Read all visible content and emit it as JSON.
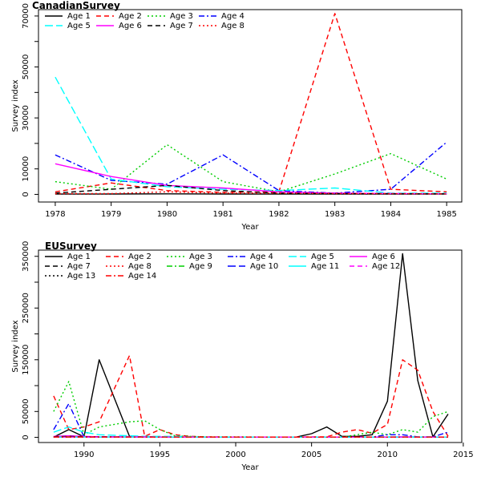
{
  "chart_data": [
    {
      "type": "line",
      "title": "CanadianSurvey",
      "xlabel": "Year",
      "ylabel": "Survey index",
      "x": [
        1978,
        1979,
        1980,
        1981,
        1982,
        1983,
        1984,
        1985
      ],
      "xlim": [
        1977.7,
        1985.27
      ],
      "ylim": [
        -3000,
        72500
      ],
      "xticks": [
        1978,
        1979,
        1980,
        1981,
        1982,
        1983,
        1984,
        1985
      ],
      "yticks": [
        0,
        10000,
        30000,
        50000,
        70000
      ],
      "minor_yticks": [
        20000,
        40000,
        60000
      ],
      "legend": "top-left",
      "legend_cols": 4,
      "series": [
        {
          "name": "Age 1",
          "color": "#000000",
          "dash": "solid",
          "values": [
            100,
            150,
            200,
            150,
            100,
            100,
            100,
            100
          ]
        },
        {
          "name": "Age 2",
          "color": "#ff0000",
          "dash": "dashed",
          "values": [
            1000,
            4500,
            1500,
            800,
            1000,
            71000,
            2000,
            1000
          ]
        },
        {
          "name": "Age 3",
          "color": "#00cd00",
          "dash": "dotted",
          "values": [
            5000,
            2000,
            19500,
            5000,
            1000,
            8000,
            16000,
            6000
          ]
        },
        {
          "name": "Age 4",
          "color": "#0000ff",
          "dash": "dashdot",
          "values": [
            15500,
            5500,
            4000,
            15500,
            1500,
            500,
            2000,
            20500
          ]
        },
        {
          "name": "Age 5",
          "color": "#00ffff",
          "dash": "longdash",
          "values": [
            46000,
            6000,
            3000,
            2000,
            1500,
            2500,
            500,
            500
          ]
        },
        {
          "name": "Age 6",
          "color": "#ff00ff",
          "dash": "solid",
          "values": [
            12000,
            7000,
            3500,
            2500,
            1000,
            500,
            300,
            200
          ]
        },
        {
          "name": "Age 7",
          "color": "#000000",
          "dash": "dashed",
          "values": [
            500,
            2000,
            3500,
            1500,
            500,
            300,
            200,
            200
          ]
        },
        {
          "name": "Age 8",
          "color": "#ff0000",
          "dash": "dotted",
          "values": [
            300,
            300,
            1000,
            500,
            500,
            300,
            300,
            200
          ]
        }
      ]
    },
    {
      "type": "line",
      "title": "EUSurvey",
      "xlabel": "Year",
      "ylabel": "Survey index",
      "x": [
        1988,
        1989,
        1990,
        1991,
        1993,
        1994,
        1995,
        1996,
        1997,
        1998,
        2000,
        2002,
        2004,
        2005,
        2006,
        2007,
        2008,
        2009,
        2010,
        2011,
        2012,
        2013,
        2014
      ],
      "xlim": [
        1987,
        2014.9
      ],
      "ylim": [
        -10000,
        362000
      ],
      "xticks": [
        1990,
        1995,
        2000,
        2005,
        2010,
        2015
      ],
      "yticks": [
        0,
        50000,
        150000,
        250000,
        350000
      ],
      "minor_yticks": [
        100000,
        200000,
        300000
      ],
      "legend": "top-left",
      "legend_cols": 6,
      "series": [
        {
          "name": "Age 1",
          "color": "#000000",
          "dash": "solid",
          "values": [
            500,
            15000,
            1000,
            150000,
            2000,
            1000,
            500,
            500,
            500,
            500,
            500,
            500,
            500,
            7000,
            20000,
            2000,
            2000,
            5000,
            70000,
            355000,
            110000,
            1000,
            45000
          ]
        },
        {
          "name": "Age 2",
          "color": "#ff0000",
          "dash": "dashed",
          "values": [
            80000,
            15000,
            20000,
            30000,
            158000,
            2000,
            15000,
            5000,
            2000,
            1000,
            500,
            500,
            500,
            1000,
            1000,
            10000,
            15000,
            8000,
            25000,
            150000,
            130000,
            50000,
            2000
          ]
        },
        {
          "name": "Age 3",
          "color": "#00cd00",
          "dash": "dotted",
          "values": [
            50000,
            108000,
            5000,
            20000,
            30000,
            32000,
            15000,
            3000,
            2000,
            1000,
            1000,
            500,
            500,
            500,
            500,
            500,
            5000,
            10000,
            5000,
            15000,
            10000,
            40000,
            50000
          ]
        },
        {
          "name": "Age 4",
          "color": "#0000ff",
          "dash": "dashdot",
          "values": [
            15000,
            65000,
            1000,
            1000,
            1000,
            1000,
            1000,
            1000,
            500,
            500,
            500,
            500,
            500,
            500,
            500,
            500,
            500,
            500,
            5000,
            5000,
            1000,
            1000,
            10000
          ]
        },
        {
          "name": "Age 5",
          "color": "#00ffff",
          "dash": "longdash",
          "values": [
            10000,
            20000,
            10000,
            5000,
            3000,
            2000,
            2000,
            2000,
            1000,
            500,
            500,
            500,
            500,
            500,
            500,
            500,
            500,
            500,
            1000,
            1000,
            1000,
            500,
            500
          ]
        },
        {
          "name": "Age 6",
          "color": "#ff00ff",
          "dash": "solid",
          "values": [
            2000,
            3000,
            2000,
            1000,
            1000,
            1000,
            500,
            500,
            500,
            500,
            500,
            500,
            500,
            500,
            500,
            500,
            500,
            500,
            500,
            1000,
            500,
            500,
            500
          ]
        },
        {
          "name": "Age 7",
          "color": "#000000",
          "dash": "dashed",
          "values": [
            1000,
            2000,
            1000,
            1000,
            500,
            500,
            500,
            500,
            500,
            500,
            500,
            500,
            500,
            500,
            500,
            500,
            500,
            500,
            500,
            500,
            500,
            500,
            500
          ]
        },
        {
          "name": "Age 8",
          "color": "#ff0000",
          "dash": "dotted",
          "values": [
            500,
            1000,
            500,
            500,
            500,
            500,
            500,
            500,
            500,
            500,
            500,
            500,
            500,
            500,
            500,
            500,
            500,
            500,
            500,
            500,
            500,
            500,
            500
          ]
        },
        {
          "name": "Age 9",
          "color": "#00cd00",
          "dash": "dashdot",
          "values": [
            500,
            1000,
            500,
            500,
            500,
            500,
            500,
            500,
            500,
            500,
            500,
            500,
            500,
            500,
            500,
            500,
            500,
            500,
            500,
            500,
            500,
            500,
            500
          ]
        },
        {
          "name": "Age 10",
          "color": "#0000ff",
          "dash": "longdash",
          "values": [
            500,
            500,
            500,
            500,
            500,
            500,
            500,
            500,
            500,
            500,
            500,
            500,
            500,
            500,
            500,
            500,
            500,
            500,
            500,
            500,
            500,
            500,
            500
          ]
        },
        {
          "name": "Age 11",
          "color": "#00ffff",
          "dash": "solid",
          "values": [
            500,
            500,
            500,
            500,
            500,
            500,
            500,
            500,
            500,
            500,
            500,
            500,
            500,
            500,
            500,
            500,
            500,
            500,
            500,
            500,
            500,
            500,
            500
          ]
        },
        {
          "name": "Age 12",
          "color": "#ff00ff",
          "dash": "dashed",
          "values": [
            500,
            500,
            500,
            500,
            500,
            500,
            500,
            500,
            500,
            500,
            500,
            500,
            500,
            500,
            500,
            500,
            500,
            500,
            500,
            500,
            500,
            500,
            500
          ]
        },
        {
          "name": "Age 13",
          "color": "#000000",
          "dash": "dotted",
          "values": [
            500,
            500,
            500,
            500,
            500,
            500,
            500,
            500,
            500,
            500,
            500,
            500,
            500,
            500,
            500,
            500,
            500,
            500,
            500,
            500,
            500,
            500,
            500
          ]
        },
        {
          "name": "Age 14",
          "color": "#ff0000",
          "dash": "dashdot",
          "values": [
            500,
            500,
            500,
            500,
            500,
            500,
            500,
            500,
            500,
            500,
            500,
            500,
            500,
            500,
            500,
            500,
            500,
            500,
            500,
            500,
            500,
            500,
            500
          ]
        }
      ]
    }
  ]
}
